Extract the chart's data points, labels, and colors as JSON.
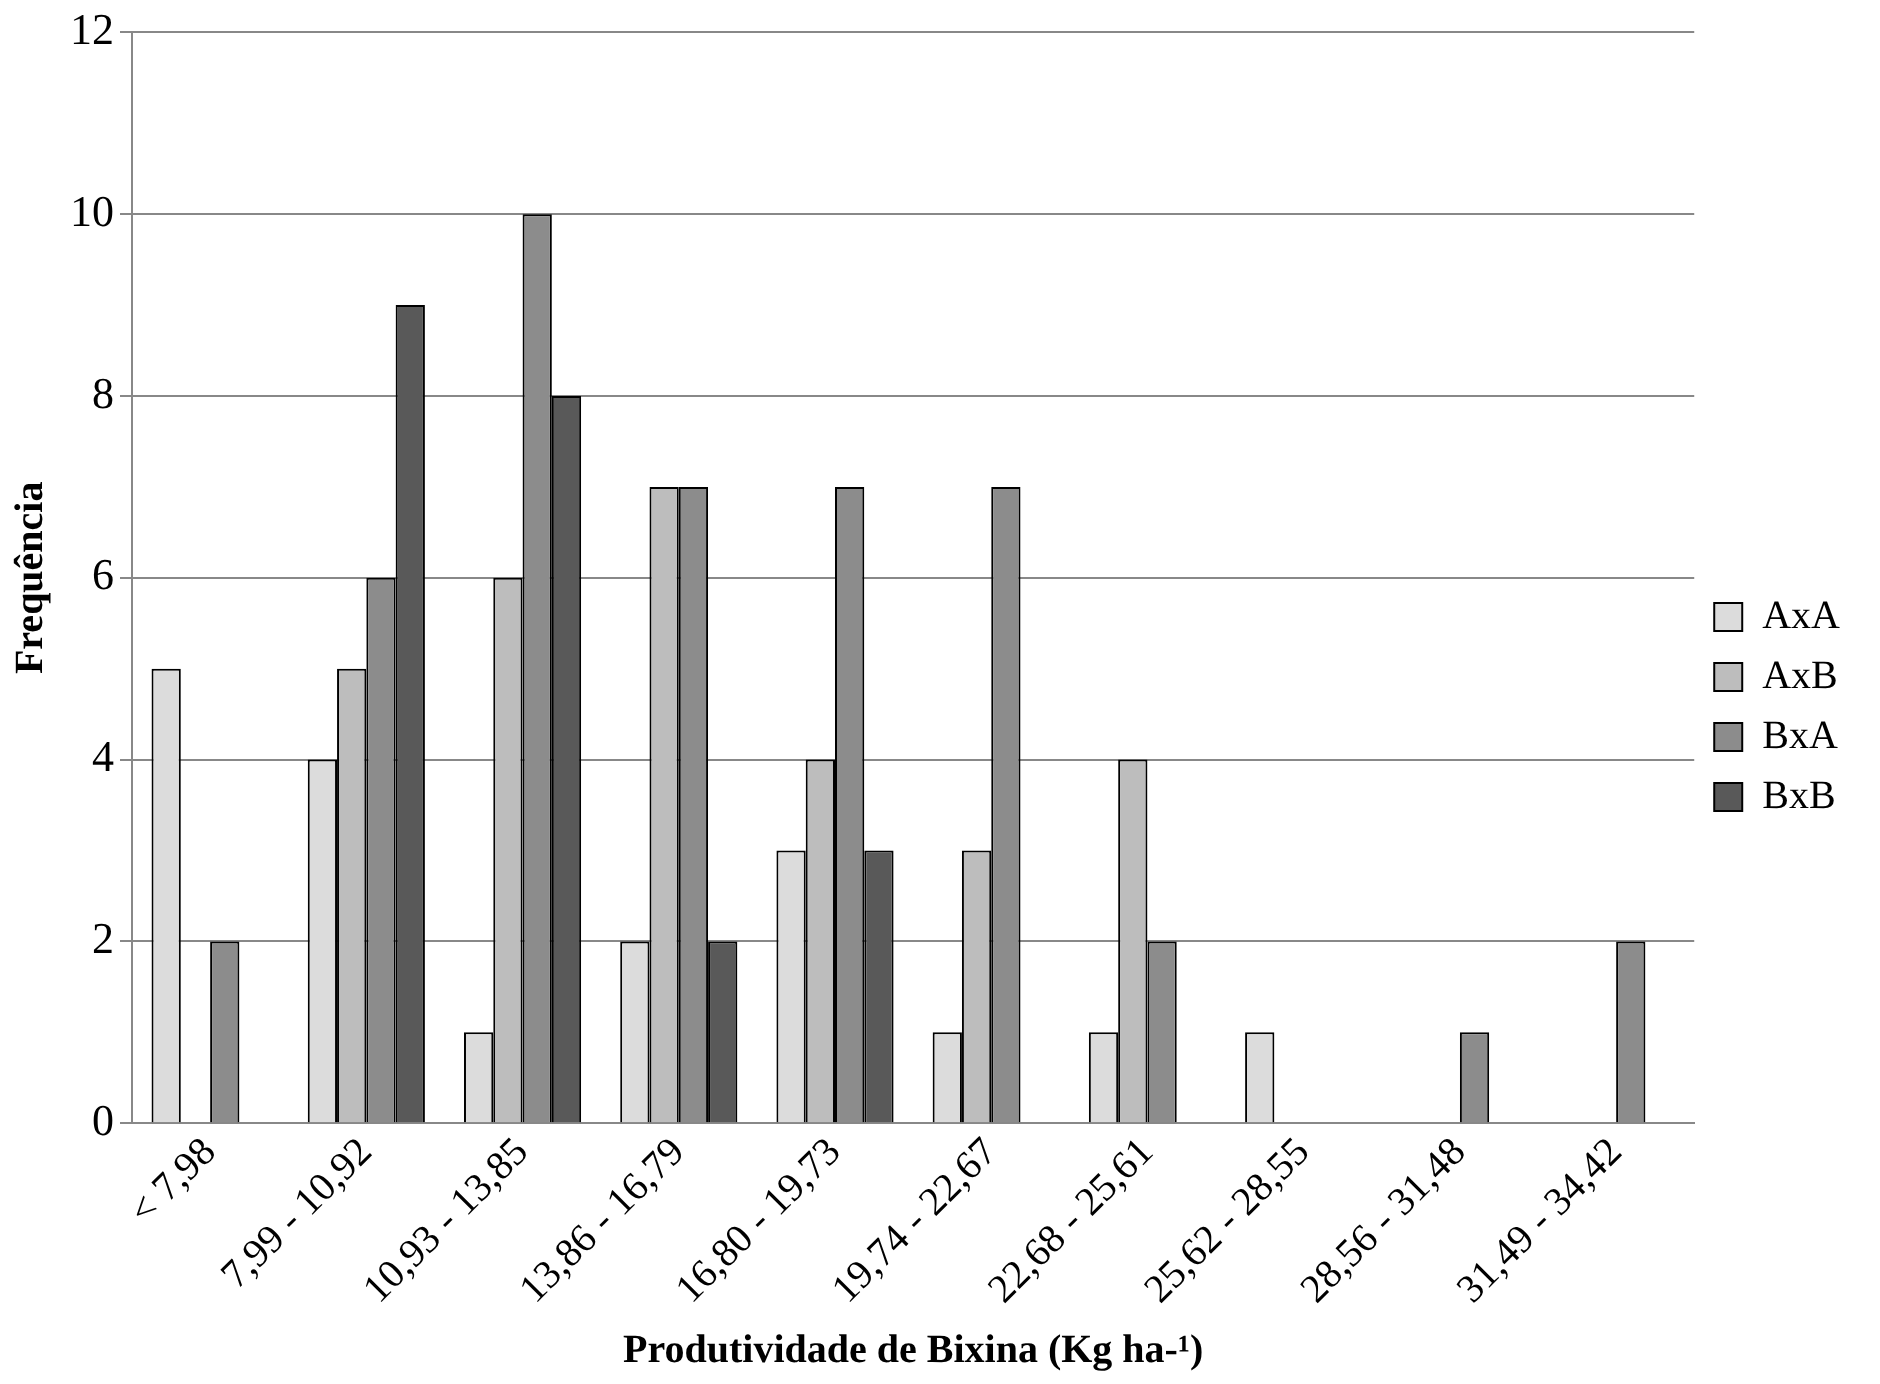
{
  "chart_data": {
    "type": "bar",
    "xlabel": "Produtividade de Bixina (Kg ha-¹)",
    "ylabel": "Frequência",
    "categories": [
      "< 7,98",
      "7,99 - 10,92",
      "10,93 - 13,85",
      "13,86 - 16,79",
      "16,80 - 19,73",
      "19,74 - 22,67",
      "22,68 - 25,61",
      "25,62 - 28,55",
      "28,56 - 31,48",
      "31,49 - 34,42"
    ],
    "series": [
      {
        "name": "AxA",
        "color": "#dcdcdc",
        "values": [
          5,
          4,
          1,
          2,
          3,
          1,
          1,
          1,
          0,
          0
        ]
      },
      {
        "name": "AxB",
        "color": "#bdbdbd",
        "values": [
          0,
          5,
          6,
          7,
          4,
          3,
          4,
          0,
          0,
          0
        ]
      },
      {
        "name": "BxA",
        "color": "#8c8c8c",
        "values": [
          2,
          6,
          10,
          7,
          7,
          7,
          2,
          0,
          1,
          2
        ]
      },
      {
        "name": "BxB",
        "color": "#595959",
        "values": [
          0,
          9,
          8,
          2,
          3,
          0,
          0,
          0,
          0,
          0
        ]
      }
    ],
    "ylim": [
      0,
      12
    ],
    "yticks": [
      0,
      2,
      4,
      6,
      8,
      10,
      12
    ],
    "grid": "y",
    "legend": "right"
  }
}
